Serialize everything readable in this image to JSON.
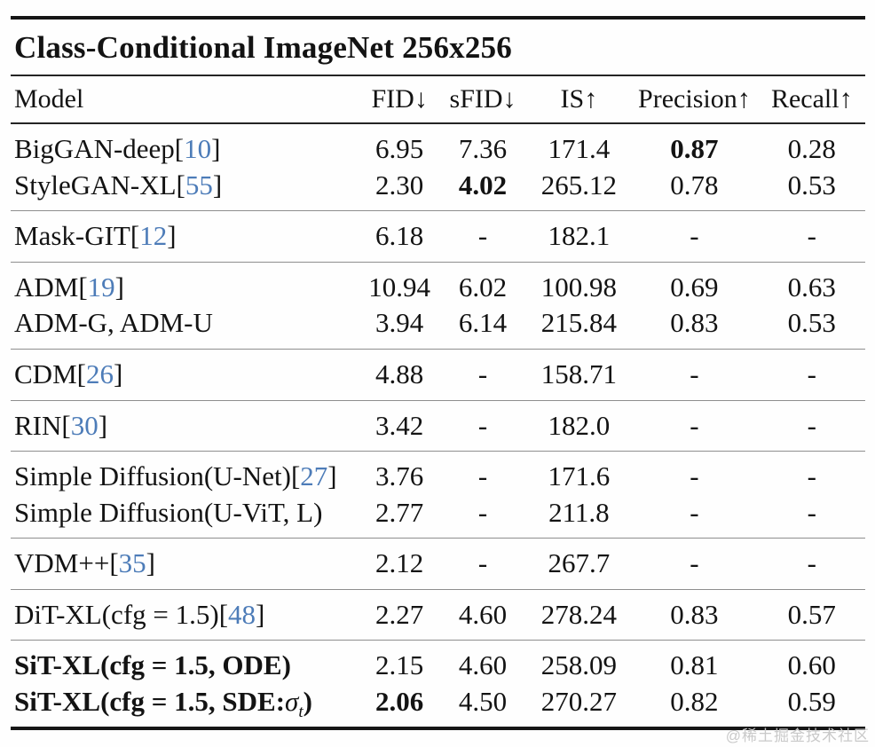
{
  "title": "Class-Conditional ImageNet 256x256",
  "columns": [
    "Model",
    "FID↓",
    "sFID↓",
    "IS↑",
    "Precision↑",
    "Recall↑"
  ],
  "watermark": "@稀土掘金技术社区",
  "colors": {
    "citation_blue": "#4d7cb8",
    "rule_dark": "#161616",
    "rule_light": "#8e8e8e",
    "watermark_gray": "#c9c9c9"
  },
  "groups": [
    [
      {
        "name": "BigGAN-deep",
        "cite": "10",
        "values": [
          "6.95",
          "7.36",
          "171.4",
          "0.87",
          "0.28"
        ],
        "bold_values": [
          3
        ]
      },
      {
        "name": "StyleGAN-XL",
        "cite": "55",
        "values": [
          "2.30",
          "4.02",
          "265.12",
          "0.78",
          "0.53"
        ],
        "bold_values": [
          1
        ]
      }
    ],
    [
      {
        "name": "Mask-GIT",
        "cite": "12",
        "values": [
          "6.18",
          "-",
          "182.1",
          "-",
          "-"
        ]
      }
    ],
    [
      {
        "name": "ADM",
        "cite": "19",
        "values": [
          "10.94",
          "6.02",
          "100.98",
          "0.69",
          "0.63"
        ]
      },
      {
        "name": "ADM-G, ADM-U",
        "cite": null,
        "values": [
          "3.94",
          "6.14",
          "215.84",
          "0.83",
          "0.53"
        ]
      }
    ],
    [
      {
        "name": "CDM",
        "cite": "26",
        "values": [
          "4.88",
          "-",
          "158.71",
          "-",
          "-"
        ]
      }
    ],
    [
      {
        "name": "RIN",
        "cite": "30",
        "values": [
          "3.42",
          "-",
          "182.0",
          "-",
          "-"
        ]
      }
    ],
    [
      {
        "name": "Simple Diffusion(U-Net)",
        "cite": "27",
        "values": [
          "3.76",
          "-",
          "171.6",
          "-",
          "-"
        ]
      },
      {
        "name": "Simple Diffusion(U-ViT, L)",
        "cite": null,
        "values": [
          "2.77",
          "-",
          "211.8",
          "-",
          "-"
        ]
      }
    ],
    [
      {
        "name": "VDM++",
        "cite": "35",
        "values": [
          "2.12",
          "-",
          "267.7",
          "-",
          "-"
        ]
      }
    ],
    [
      {
        "name": "DiT-XL(cfg = 1.5)",
        "cite": "48",
        "values": [
          "2.27",
          "4.60",
          "278.24",
          "0.83",
          "0.57"
        ]
      }
    ],
    [
      {
        "name": "SiT-XL(cfg = 1.5, ODE)",
        "cite": null,
        "bold_name": true,
        "values": [
          "2.15",
          "4.60",
          "258.09",
          "0.81",
          "0.60"
        ]
      },
      {
        "name": "SiT-XL(cfg = 1.5, SDE:",
        "sigma_t": true,
        "name_close": ")",
        "cite": null,
        "bold_name": true,
        "values": [
          "2.06",
          "4.50",
          "270.27",
          "0.82",
          "0.59"
        ],
        "bold_values": [
          0
        ]
      }
    ]
  ],
  "chart_data": {
    "type": "table",
    "title": "Class-Conditional ImageNet 256x256",
    "columns": [
      "Model",
      "FID↓",
      "sFID↓",
      "IS↑",
      "Precision↑",
      "Recall↑"
    ],
    "rows": [
      [
        "BigGAN-deep[10]",
        "6.95",
        "7.36",
        "171.4",
        "0.87",
        "0.28"
      ],
      [
        "StyleGAN-XL[55]",
        "2.30",
        "4.02",
        "265.12",
        "0.78",
        "0.53"
      ],
      [
        "Mask-GIT[12]",
        "6.18",
        "-",
        "182.1",
        "-",
        "-"
      ],
      [
        "ADM[19]",
        "10.94",
        "6.02",
        "100.98",
        "0.69",
        "0.63"
      ],
      [
        "ADM-G, ADM-U",
        "3.94",
        "6.14",
        "215.84",
        "0.83",
        "0.53"
      ],
      [
        "CDM[26]",
        "4.88",
        "-",
        "158.71",
        "-",
        "-"
      ],
      [
        "RIN[30]",
        "3.42",
        "-",
        "182.0",
        "-",
        "-"
      ],
      [
        "Simple Diffusion(U-Net)[27]",
        "3.76",
        "-",
        "171.6",
        "-",
        "-"
      ],
      [
        "Simple Diffusion(U-ViT, L)",
        "2.77",
        "-",
        "211.8",
        "-",
        "-"
      ],
      [
        "VDM++[35]",
        "2.12",
        "-",
        "267.7",
        "-",
        "-"
      ],
      [
        "DiT-XL(cfg = 1.5)[48]",
        "2.27",
        "4.60",
        "278.24",
        "0.83",
        "0.57"
      ],
      [
        "SiT-XL(cfg = 1.5, ODE)",
        "2.15",
        "4.60",
        "258.09",
        "0.81",
        "0.60"
      ],
      [
        "SiT-XL(cfg = 1.5, SDE:σ_t)",
        "2.06",
        "4.50",
        "270.27",
        "0.82",
        "0.59"
      ]
    ]
  }
}
